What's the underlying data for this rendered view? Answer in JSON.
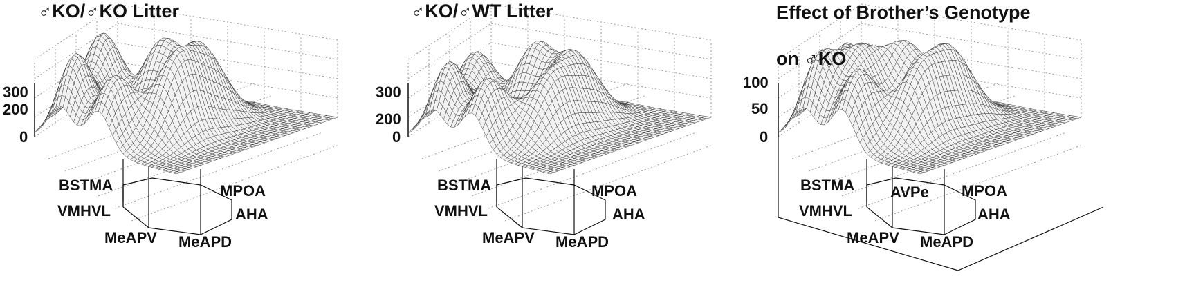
{
  "colors": {
    "ink": "#111111",
    "surface": "#f2f2f2",
    "mesh": "#2a2a2a",
    "grid": "#9a9a9a"
  },
  "chart_data": [
    {
      "type": "surface",
      "title": "♂KO/♂KO Litter",
      "zticks": [
        "0",
        "200",
        "300"
      ],
      "zlim": [
        0,
        300
      ],
      "grid": true,
      "regions": [
        {
          "name": "BSTMA",
          "peak": 300
        },
        {
          "name": "MPOA",
          "peak": 260
        },
        {
          "name": "VMHVL",
          "peak": 280
        },
        {
          "name": "AHA",
          "peak": 250
        },
        {
          "name": "MeAPV",
          "peak": 290
        },
        {
          "name": "MeAPD",
          "peak": 290
        }
      ]
    },
    {
      "type": "surface",
      "title": "♂KO/♂WT Litter",
      "zticks": [
        "0",
        "200",
        "300"
      ],
      "zlim": [
        0,
        300
      ],
      "grid": true,
      "regions": [
        {
          "name": "BSTMA",
          "peak": 270
        },
        {
          "name": "MPOA",
          "peak": 250
        },
        {
          "name": "VMHVL",
          "peak": 270
        },
        {
          "name": "AHA",
          "peak": 230
        },
        {
          "name": "MeAPV",
          "peak": 220
        },
        {
          "name": "MeAPD",
          "peak": 220
        }
      ]
    },
    {
      "type": "surface",
      "title": "Effect of Brother’s Genotype",
      "subtitle": "on ♂KO",
      "zticks": [
        "0",
        "50",
        "100"
      ],
      "zlim": [
        0,
        100
      ],
      "grid": true,
      "regions": [
        {
          "name": "BSTMA",
          "peak": 100
        },
        {
          "name": "AVPe",
          "peak": 95
        },
        {
          "name": "MPOA",
          "peak": 90
        },
        {
          "name": "VMHVL",
          "peak": 90
        },
        {
          "name": "AHA",
          "peak": 85
        },
        {
          "name": "MeAPV",
          "peak": 90
        },
        {
          "name": "MeAPD",
          "peak": 85
        }
      ]
    }
  ]
}
